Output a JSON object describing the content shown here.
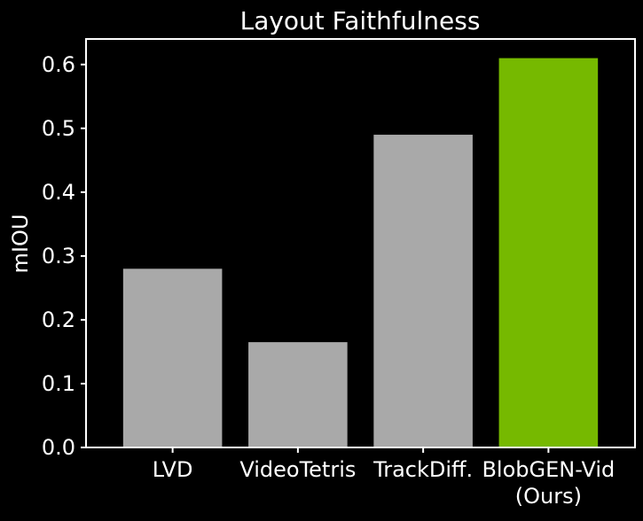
{
  "chart_data": {
    "type": "bar",
    "title": "Layout Faithfulness",
    "xlabel": "",
    "ylabel": "mIOU",
    "categories": [
      "LVD",
      "VideoTetris",
      "TrackDiff.",
      "BlobGEN-Vid\n(Ours)"
    ],
    "values": [
      0.28,
      0.165,
      0.49,
      0.61
    ],
    "ylim": [
      0,
      0.64
    ],
    "yticks": [
      "0.0",
      "0.1",
      "0.2",
      "0.3",
      "0.4",
      "0.5",
      "0.6"
    ],
    "grid": false,
    "legend": "none"
  },
  "colors": {
    "background": "#000000",
    "axes": "#ffffff",
    "text": "#ffffff",
    "baseline_bar": "#a9a9a9",
    "highlight_bar": "#76b900"
  }
}
